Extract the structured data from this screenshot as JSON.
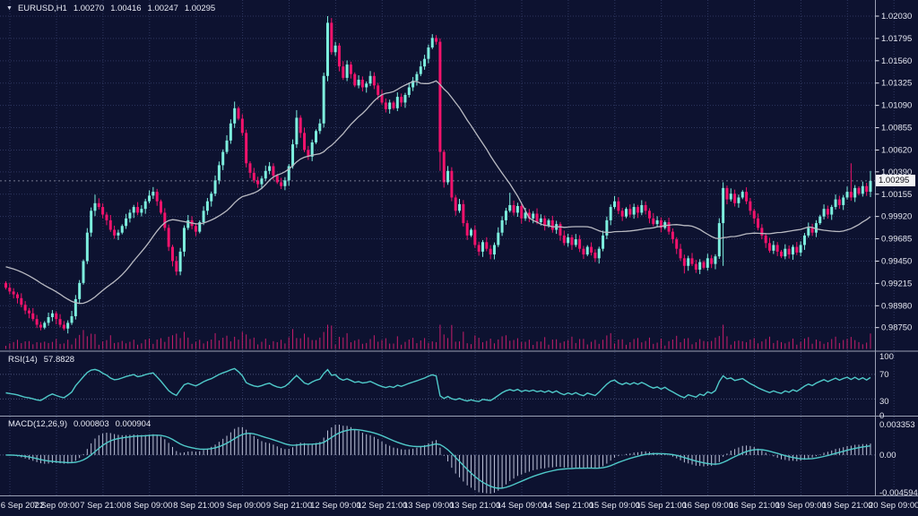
{
  "header": {
    "symbol": "EURUSD,H1",
    "open": "1.00270",
    "high": "1.00416",
    "low": "1.00247",
    "close": "1.00295"
  },
  "price_axis": {
    "current": "1.00295"
  },
  "rsi": {
    "label": "RSI(14)",
    "value": "57.8828"
  },
  "macd": {
    "label": "MACD(12,26,9)",
    "value1": "0.000803",
    "value2": "0.000904"
  },
  "colors": {
    "background": "#0d1230",
    "up": "#7deede",
    "down": "#f2136c",
    "ma": "#b9bac2",
    "indicator": "#4fc9c9",
    "histogram": "#bdc2d8",
    "volume": "#c81e6c",
    "grid": "#2f3760",
    "axis_text": "#e6e8f2",
    "border": "#9aa0b4",
    "current_line": "#c9cedf"
  },
  "chart_data": {
    "type": "candlestick",
    "symbol": "EURUSD",
    "timeframe": "H1",
    "title": "EURUSD,H1 1.00270 1.00416 1.00247 1.00295",
    "price_ticks": [
      "1.02030",
      "1.01795",
      "1.01560",
      "1.01325",
      "1.01090",
      "1.00855",
      "1.00620",
      "1.00390",
      "1.00155",
      "0.99920",
      "0.99685",
      "0.99450",
      "0.99215",
      "0.98980",
      "0.98750"
    ],
    "time_ticks": [
      "6 Sep 2022",
      "7 Sep 09:00",
      "7 Sep 21:00",
      "8 Sep 09:00",
      "8 Sep 21:00",
      "9 Sep 09:00",
      "9 Sep 21:00",
      "12 Sep 09:00",
      "12 Sep 21:00",
      "13 Sep 09:00",
      "13 Sep 21:00",
      "14 Sep 09:00",
      "14 Sep 21:00",
      "15 Sep 09:00",
      "15 Sep 21:00",
      "16 Sep 09:00",
      "16 Sep 21:00",
      "19 Sep 09:00",
      "19 Sep 21:00",
      "20 Sep 09:00"
    ],
    "rsi_ticks": [
      "100",
      "70",
      "30",
      "0"
    ],
    "rsi_levels": [
      70,
      30
    ],
    "macd_ticks": {
      "top": "0.003353",
      "zero": "0.00",
      "bottom": "-0.004594"
    },
    "price_range": [
      0.9875,
      1.0203
    ],
    "current_price": 1.00295,
    "ma_period": 24,
    "rsi_period": 14,
    "macd_params": [
      12,
      26,
      9
    ],
    "closes": [
      0.9917,
      0.9913,
      0.991,
      0.9906,
      0.9899,
      0.9893,
      0.989,
      0.9884,
      0.9878,
      0.9875,
      0.988,
      0.9886,
      0.989,
      0.9884,
      0.9878,
      0.9874,
      0.988,
      0.9887,
      0.9905,
      0.9922,
      0.9945,
      0.9975,
      0.9998,
      1.0006,
      1.0002,
      0.9994,
      0.9988,
      0.9978,
      0.9972,
      0.9975,
      0.9982,
      0.999,
      0.9996,
      1.0002,
      0.9996,
      1.0,
      1.0008,
      1.0014,
      1.0018,
      1.0008,
      0.9996,
      0.998,
      0.996,
      0.9945,
      0.9934,
      0.9955,
      0.998,
      0.9988,
      0.9982,
      0.9976,
      0.9986,
      0.9998,
      1.0008,
      1.0016,
      1.003,
      1.0046,
      1.006,
      1.0072,
      1.009,
      1.0106,
      1.0095,
      1.008,
      1.0048,
      1.0038,
      1.003,
      1.0026,
      1.0032,
      1.004,
      1.0045,
      1.0035,
      1.0028,
      1.0024,
      1.003,
      1.0045,
      1.0068,
      1.0096,
      1.008,
      1.0062,
      1.0055,
      1.007,
      1.0082,
      1.009,
      1.014,
      1.0196,
      1.0165,
      1.0172,
      1.015,
      1.0138,
      1.0152,
      1.0142,
      1.013,
      1.0136,
      1.0128,
      1.0132,
      1.014,
      1.013,
      1.012,
      1.0112,
      1.0105,
      1.0112,
      1.0106,
      1.0118,
      1.0112,
      1.012,
      1.0128,
      1.0135,
      1.0142,
      1.015,
      1.0158,
      1.017,
      1.018,
      1.0176,
      1.006,
      1.0028,
      1.004,
      1.0012,
      0.9998,
      1.0005,
      0.9985,
      0.9972,
      0.9978,
      0.9962,
      0.9955,
      0.9965,
      0.9958,
      0.9952,
      0.9962,
      0.9975,
      0.9988,
      0.9998,
      1.0004,
      0.9996,
      1.0003,
      0.999,
      0.9996,
      0.999,
      0.9995,
      0.9986,
      0.999,
      0.9982,
      0.9988,
      0.9978,
      0.9984,
      0.9972,
      0.9964,
      0.997,
      0.9962,
      0.9968,
      0.9958,
      0.9952,
      0.996,
      0.9954,
      0.9948,
      0.9958,
      0.9972,
      0.9988,
      1.0002,
      1.0008,
      0.9998,
      0.9992,
      1.0,
      0.9994,
      1.0002,
      0.9996,
      1.0004,
      0.9998,
      0.999,
      0.9984,
      0.9988,
      0.998,
      0.9986,
      0.9976,
      0.9968,
      0.9958,
      0.9948,
      0.994,
      0.9948,
      0.9942,
      0.9936,
      0.9944,
      0.9938,
      0.9948,
      0.9942,
      0.995,
      0.9985,
      1.0022,
      1.001,
      1.0016,
      1.0006,
      1.0012,
      1.0018,
      1.0008,
      0.9998,
      0.999,
      0.998,
      0.9972,
      0.9964,
      0.9956,
      0.9962,
      0.9955,
      0.995,
      0.9958,
      0.9952,
      0.996,
      0.9954,
      0.9962,
      0.9972,
      0.998,
      0.9975,
      0.9985,
      0.9992,
      1.0,
      0.9994,
      1.0002,
      1.001,
      1.0004,
      1.0012,
      1.0018,
      1.0012,
      1.0022,
      1.0016,
      1.0024,
      1.0018,
      1.00295
    ],
    "wick_overrides": {
      "9": [
        null,
        0.9872
      ],
      "15": [
        null,
        0.9872
      ],
      "23": [
        1.0015,
        null
      ],
      "38": [
        1.0023,
        null
      ],
      "44": [
        null,
        0.993
      ],
      "59": [
        1.0113,
        null
      ],
      "75": [
        1.0104,
        null
      ],
      "83": [
        1.0203,
        null
      ],
      "84": [
        1.0201,
        null
      ],
      "110": [
        1.0184,
        null
      ],
      "111": [
        1.0183,
        null
      ],
      "112": [
        null,
        1.004
      ],
      "125": [
        null,
        0.9947
      ],
      "130": [
        1.0017,
        null
      ],
      "152": [
        null,
        0.9944
      ],
      "175": [
        null,
        0.9932
      ],
      "185": [
        1.0028,
        0.994
      ],
      "218": [
        1.0048,
        null
      ],
      "223": [
        1.004,
        null
      ]
    }
  }
}
